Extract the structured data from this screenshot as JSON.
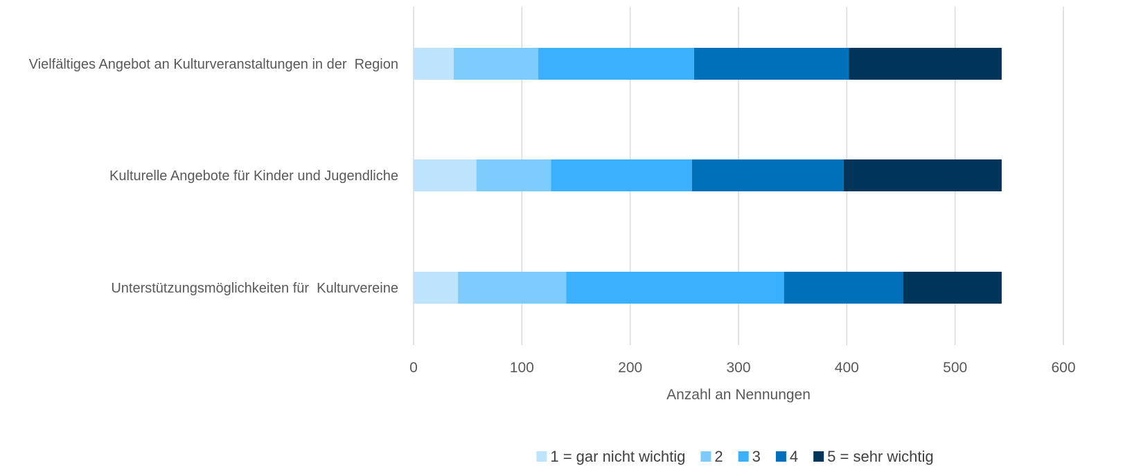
{
  "chart_data": {
    "type": "bar",
    "orientation": "horizontal",
    "stacked": true,
    "categories": [
      "Vielfältiges Angebot an Kulturveranstaltungen in der  Region",
      "Kulturelle Angebote für Kinder und Jugendliche",
      "Unterstützungsmöglichkeiten für  Kulturvereine"
    ],
    "series": [
      {
        "name": "1 = gar nicht wichtig",
        "color": "#bde3fd",
        "values": [
          37,
          58,
          41
        ]
      },
      {
        "name": "2",
        "color": "#7dcbfd",
        "values": [
          78,
          69,
          100
        ]
      },
      {
        "name": "3",
        "color": "#3bb0fd",
        "values": [
          144,
          130,
          201
        ]
      },
      {
        "name": "4",
        "color": "#0070bb",
        "values": [
          143,
          140,
          110
        ]
      },
      {
        "name": "5 = sehr wichtig",
        "color": "#003559",
        "values": [
          141,
          146,
          91
        ]
      }
    ],
    "xlabel": "Anzahl an Nennungen",
    "ylabel": "",
    "title": "",
    "xlim": [
      0,
      600
    ],
    "xticks": [
      "0",
      "100",
      "200",
      "300",
      "400",
      "500",
      "600"
    ],
    "grid": "vertical",
    "legend": "bottom"
  }
}
